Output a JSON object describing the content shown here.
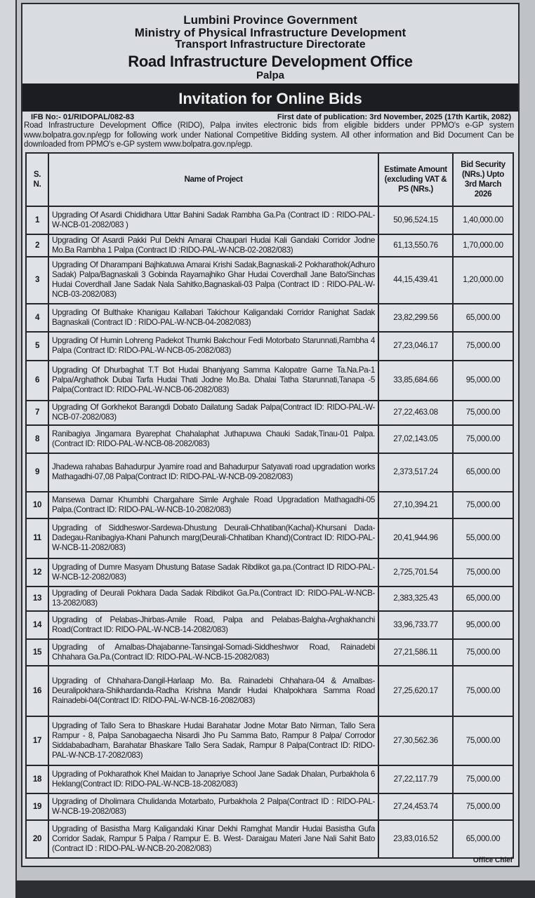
{
  "header": {
    "line1": "Lumbini Province Government",
    "line2": "Ministry of Physical Infrastructure Development",
    "line3": "Transport Infrastructure Directorate",
    "office": "Road Infrastructure Development Office",
    "location": "Palpa"
  },
  "title": "Invitation for Online Bids",
  "ifb_no": "IFB No:- 01/RIDOPAL/082-83",
  "publication_date": "First date of publication: 3rd November, 2025 (17th Kartik, 2082)",
  "intro": "Road Infrastructure Development Office (RIDO), Palpa invites electronic bids from eligible bidders under PPMO's e-GP system www.bolpatra.gov.np/egp for following work under National Competitive Bidding system. All other information and Bid Document Can be downloaded from PPMO's e-GP system www.bolpatra.gov.np/egp.",
  "table": {
    "headers": [
      "S. N.",
      "Name of Project",
      "Estimate Amount (excluding VAT & PS (NRs.)",
      "Bid Security (NRs.) Upto 3rd March 2026"
    ],
    "rows": [
      {
        "sn": "1",
        "name": "Upgrading Of Asardi Chididhara Uttar Bahini Sadak Rambha Ga.Pa (Contract ID : RIDO-PAL-W-NCB-01-2082/083 )",
        "estimate": "50,96,524.15",
        "security": "1,40,000.00"
      },
      {
        "sn": "2",
        "name": "Upgrading Of Asardi Pakki Pul Dekhi Amarai Chaupari Hudai Kali Gandaki Corridor Jodne Mo.Ba Rambha 1 Palpa (Contract ID :RIDO-PAL-W-NCB-02-2082/083)",
        "estimate": "61,13,550.76",
        "security": "1,70,000.00"
      },
      {
        "sn": "3",
        "name": "Upgrading Of Dharampani Bajhkatuwa Amarai Krishi Sadak,Bagnaskali-2 Pokharathok(Adhuro Sadak) Palpa/Bagnaskali 3 Gobinda Rayamajhiko Ghar Hudai Coverdhall Jane Bato/Sinchas Hudai Coverdhall Jane Sadak Nala Sahitko,Bagnaskali-03 Palpa (Contract ID : RIDO-PAL-W-NCB-03-2082/083)",
        "estimate": "44,15,439.41",
        "security": "1,20,000.00"
      },
      {
        "sn": "4",
        "name": "Upgrading Of Bulthake Khanigau Kallabari Takichour Kaligandaki Corridor Ranighat Sadak Bagnaskali (Contract ID : RIDO-PAL-W-NCB-04-2082/083)",
        "estimate": "23,82,299.56",
        "security": "65,000.00"
      },
      {
        "sn": "5",
        "name": "Upgrading Of Humin Lohreng Padekot Thumki Bakchour Fedi Motorbato Starunnati,Rambha 4 Palpa (Contract ID: RIDO-PAL-W-NCB-05-2082/083)",
        "estimate": "27,23,046.17",
        "security": "75,000.00"
      },
      {
        "sn": "6",
        "name": "Upgrading Of Dhurbaghat T.T Bot Hudai Bhanjyang Samma Kalopatre Garne Ta.Na.Pa-1 Palpa/Arghathok Dubai Tarfa Hudai Thati Jodne Mo.Ba. Dhalai Tatha Starunnati,Tanapa -5 Palpa(Contract ID: RIDO-PAL-W-NCB-06-2082/083)",
        "estimate": "33,85,684.66",
        "security": "95,000.00"
      },
      {
        "sn": "7",
        "name": "Upgrading Of Gorkhekot Barangdi Dobato Dailatung Sadak Palpa(Contract ID: RIDO-PAL-W-NCB-07-2082/083)",
        "estimate": "27,22,463.08",
        "security": "75,000.00"
      },
      {
        "sn": "8",
        "name": "Ranibagiya Jingamara Byarephat Chahalaphat Juthapuwa Chauki Sadak,Tinau-01 Palpa.(Contract ID: RIDO-PAL-W-NCB-08-2082/083)",
        "estimate": "27,02,143.05",
        "security": "75,000.00"
      },
      {
        "sn": "9",
        "name": "Jhadewa rahabas Bahadurpur Jyamire road and Bahadurpur Satyavati road upgradation works Mathagadhi-07,08 Palpa(Contract ID: RIDO-PAL-W-NCB-09-2082/083)",
        "estimate": "2,373,517.24",
        "security": "65,000.00"
      },
      {
        "sn": "10",
        "name": "Mansewa Damar Khumbhi Chargahare Simle Arghale Road Upgradation Mathagadhi-05 Palpa.(Contract ID: RIDO-PAL-W-NCB-10-2082/083)",
        "estimate": "27,10,394.21",
        "security": "75,000.00"
      },
      {
        "sn": "11",
        "name": "Upgrading of Siddheswor-Sardewa-Dhustung Deurali-Chhatiban(Kachal)-Khursani Dada-Dadegau-Ranibagiya-Khani Pahunch marg(Deurali-Chhatiban Khand)(Contract ID: RIDO-PAL-W-NCB-11-2082/083)",
        "estimate": "20,41,944.96",
        "security": "55,000.00"
      },
      {
        "sn": "12",
        "name": "Upgrading of Dumre Masyam Dhustung Batase Sadak Ribdikot ga.pa.(Contract ID RIDO-PAL-W-NCB-12-2082/083)",
        "estimate": "2,725,701.54",
        "security": "75,000.00"
      },
      {
        "sn": "13",
        "name": "Upgrading of Deurali Pokhara Dada Sadak Ribdikot Ga.Pa.(Contract ID: RIDO-PAL-W-NCB-13-2082/083)",
        "estimate": "2,383,325.43",
        "security": "65,000.00"
      },
      {
        "sn": "14",
        "name": "Upgrading of Pelabas-Jhirbas-Amile Road, Palpa and Pelabas-Balgha-Arghakhanchi Road(Contract ID: RIDO-PAL-W-NCB-14-2082/083)",
        "estimate": "33,96,733.77",
        "security": "95,000.00"
      },
      {
        "sn": "15",
        "name": "Upgrading of Amalbas-Dhajabanne-Tansingal-Somadi-Siddheshwor Road, Rainadebi Chhahara Ga.Pa.(Contract ID: RIDO-PAL-W-NCB-15-2082/083)",
        "estimate": "27,21,586.11",
        "security": "75,000.00"
      },
      {
        "sn": "16",
        "name": "Upgrading of Chhahara-Dangil-Harlaap Mo. Ba. Rainadebi Chhahara-04 & Amalbas-Deuralipokhara-Shikhardanda-Radha Krishna Mandir Hudai Khalpokhara Samma Road Rainadebi-04(Contract ID: RIDO-PAL-W-NCB-16-2082/083)",
        "estimate": "27,25,620.17",
        "security": "75,000.00"
      },
      {
        "sn": "17",
        "name": "Upgrading of Tallo Sera to Bhaskare Hudai Barahatar Jodne Motar Bato Nirman, Tallo Sera Rampur - 8, Palpa Sanobagaecha Nisardi Jho Pu Samma Bato, Rampur 8 Palpa/ Corrodor Siddababadham, Barahatar Bhaskare Tallo Sera Sadak, Rampur 8 Palpa(Contract ID: RIDO-PAL-W-NCB-17-2082/083)",
        "estimate": "27,30,562.36",
        "security": "75,000.00"
      },
      {
        "sn": "18",
        "name": "Upgrading of Pokharathok Khel Maidan to Janapriye School Jane Sadak Dhalan, Purbakhola 6 Heklang(Contract ID: RIDO-PAL-W-NCB-18-2082/083)",
        "estimate": "27,22,117.79",
        "security": "75,000.00"
      },
      {
        "sn": "19",
        "name": "Upgrading of Dholimara Chulidanda Motarbato, Purbakhola 2 Palpa(Contract ID : RIDO-PAL-W-NCB-19-2082/083)",
        "estimate": "27,24,453.74",
        "security": "75,000.00"
      },
      {
        "sn": "20",
        "name": "Upgrading of Basistha Marg Kaligandaki Kinar Dekhi Ramghat Mandir Hudai Basistha Gufa Corridor Sadak, Rampur 5 Palpa / Rampur E. B. West- Daraigau Materi Jane Nali Sahit Bato (Contract ID : RIDO-PAL-W-NCB-20-2082/083)",
        "estimate": "23,83,016.52",
        "security": "65,000.00"
      }
    ]
  },
  "signature": "Office Chief"
}
